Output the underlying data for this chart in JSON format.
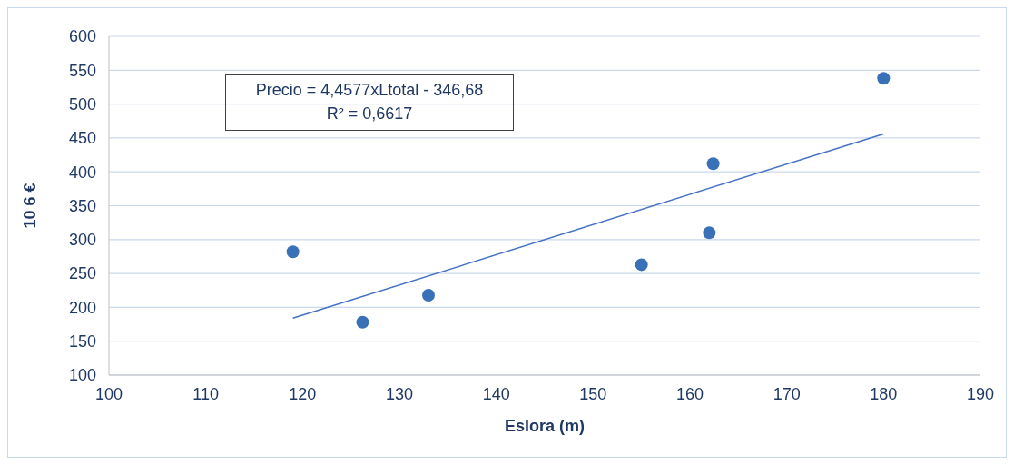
{
  "chart_data": {
    "type": "scatter",
    "xlabel": "Eslora (m)",
    "ylabel": "10 6 €",
    "annotations": [
      "Precio = 4,4577xLtotal - 346,68",
      "R² = 0,6617"
    ],
    "xlim": [
      100,
      190
    ],
    "xticks": [
      100,
      110,
      120,
      130,
      140,
      150,
      160,
      170,
      180,
      190
    ],
    "ylim": [
      100,
      600
    ],
    "yticks": [
      100,
      150,
      200,
      250,
      300,
      350,
      400,
      450,
      500,
      550,
      600
    ],
    "grid": "y",
    "legend": false,
    "marker": "circle",
    "series": [
      {
        "color": "#3a70b8",
        "x": [
          119,
          126.2,
          133,
          155,
          162,
          162.4,
          180
        ],
        "values": [
          282,
          178,
          218,
          263,
          310,
          412,
          538
        ]
      },
      {
        "type": "line",
        "color": "#4472c4",
        "x": [
          119,
          180
        ],
        "values": [
          184,
          456
        ],
        "marker": "none"
      }
    ]
  }
}
